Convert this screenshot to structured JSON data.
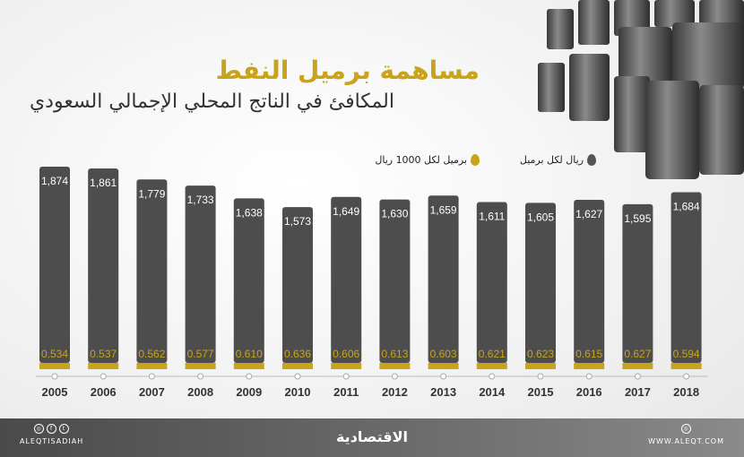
{
  "header": {
    "title": "مساهمة برميل النفط",
    "subtitle": "المكافئ في الناتج المحلي الإجمالي السعودي"
  },
  "legend": {
    "items": [
      {
        "label": "ريال لكل برميل",
        "color": "#555555"
      },
      {
        "label": "برميل لكل 1000 ريال",
        "color": "#c9a41a"
      }
    ]
  },
  "colors": {
    "bar": "#4d4d4d",
    "accent": "#c9a41a",
    "title": "#c9a41a"
  },
  "chart_data": {
    "type": "bar",
    "categories": [
      "2005",
      "2006",
      "2007",
      "2008",
      "2009",
      "2010",
      "2011",
      "2012",
      "2013",
      "2014",
      "2015",
      "2016",
      "2017",
      "2018"
    ],
    "series": [
      {
        "name": "ريال لكل برميل",
        "values": [
          1874,
          1861,
          1779,
          1733,
          1638,
          1573,
          1649,
          1630,
          1659,
          1611,
          1605,
          1627,
          1595,
          1684
        ],
        "labels": [
          "1,874",
          "1,861",
          "1,779",
          "1,733",
          "1,638",
          "1,573",
          "1,649",
          "1,630",
          "1,659",
          "1,611",
          "1,605",
          "1,627",
          "1,595",
          "1,684"
        ]
      },
      {
        "name": "برميل لكل 1000 ريال",
        "values": [
          0.534,
          0.537,
          0.562,
          0.577,
          0.61,
          0.636,
          0.606,
          0.613,
          0.603,
          0.621,
          0.623,
          0.615,
          0.627,
          0.594
        ],
        "labels": [
          "0.534",
          "0.537",
          "0.562",
          "0.577",
          "0.610",
          "0.636",
          "0.606",
          "0.613",
          "0.603",
          "0.621",
          "0.623",
          "0.615",
          "0.627",
          "0.594"
        ]
      }
    ]
  },
  "footer": {
    "handle": "ALEQTISADIAH",
    "logo": "الاقتصادية",
    "website": "WWW.ALEQT.COM",
    "social_icons": [
      "instagram-icon",
      "facebook-icon",
      "twitter-icon"
    ],
    "web_icon": "globe-icon"
  }
}
